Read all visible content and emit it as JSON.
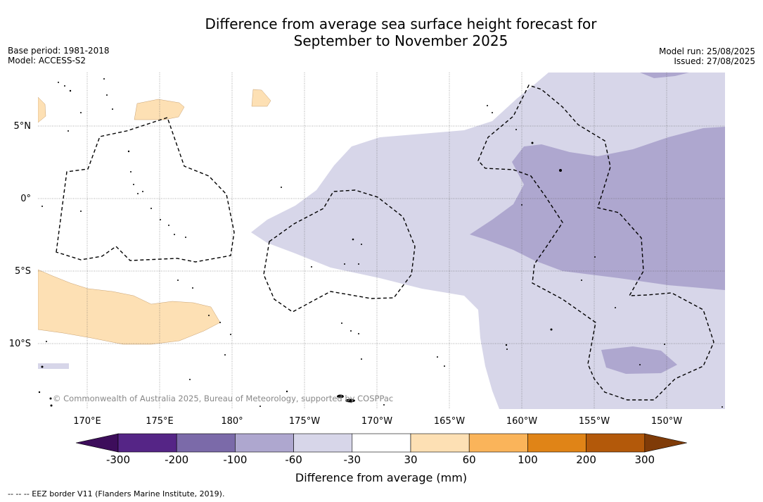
{
  "title_line1": "Difference from average sea surface height forecast for",
  "title_line2": "September to November 2025",
  "base_period": "Base period: 1981-2018",
  "model": "Model: ACCESS-S2",
  "model_run": "Model run: 25/08/2025",
  "issued": "Issued: 27/08/2025",
  "copyright": "© Commonwealth of Australia 2025, Bureau of Meteorology, supported by COSPPac",
  "lon_labels": [
    "170°E",
    "175°E",
    "180°",
    "175°W",
    "170°W",
    "165°W",
    "160°W",
    "155°W",
    "150°W"
  ],
  "lat_labels": [
    "5°N",
    "0°",
    "5°S",
    "10°S"
  ],
  "colorbar": {
    "label": "Difference from average (mm)",
    "ticks": [
      "-300",
      "-200",
      "-100",
      "-60",
      "-30",
      "30",
      "60",
      "100",
      "200",
      "300"
    ],
    "colors": [
      "#3d0d5b",
      "#552586",
      "#7b6aa9",
      "#aea7cf",
      "#d7d6e9",
      "#ffffff",
      "#fde0b4",
      "#fab45a",
      "#e08417",
      "#b3590a",
      "#7f3b08"
    ]
  },
  "footer": "--  --  -- EEZ border V11 (Flanders Marine Institute, 2019)."
}
